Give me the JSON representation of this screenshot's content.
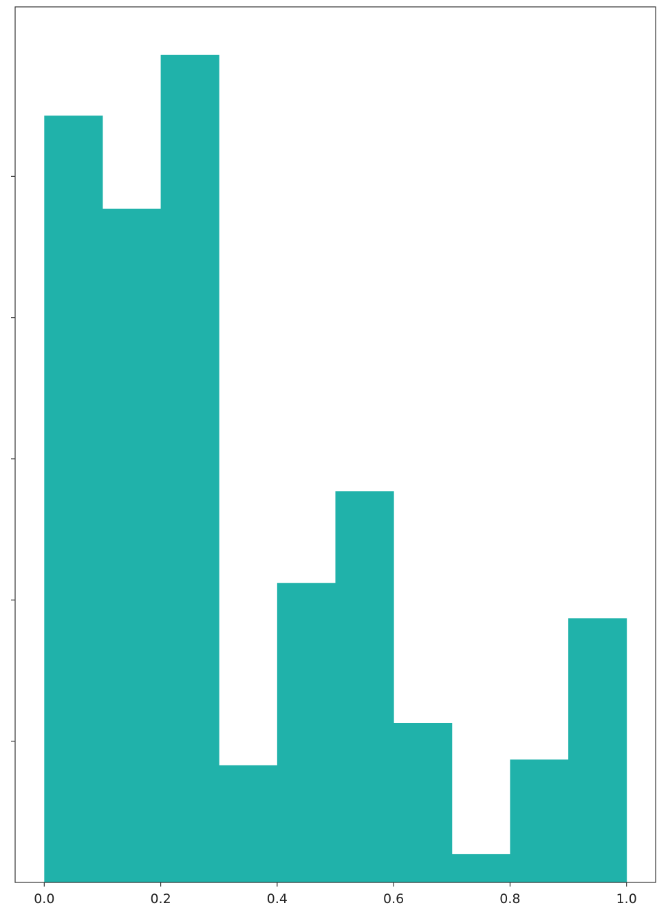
{
  "chart_data": {
    "type": "bar",
    "subtype": "histogram",
    "bin_edges": [
      0.0,
      0.1,
      0.2,
      0.3,
      0.4,
      0.5,
      0.6,
      0.7,
      0.8,
      0.9,
      1.0
    ],
    "values": [
      5.43,
      4.77,
      5.86,
      0.83,
      2.12,
      2.77,
      1.13,
      0.2,
      0.87,
      1.87
    ],
    "title": "",
    "xlabel": "",
    "ylabel": "",
    "xlim": [
      -0.05,
      1.05
    ],
    "ylim": [
      0,
      6.2
    ],
    "x_ticks": [
      0.0,
      0.2,
      0.4,
      0.6,
      0.8,
      1.0
    ],
    "x_tick_labels": [
      "0.0",
      "0.2",
      "0.4",
      "0.6",
      "0.8",
      "1.0"
    ],
    "y_ticks": [
      1,
      2,
      3,
      4,
      5
    ],
    "y_tick_labels_visible": false,
    "grid": false,
    "legend": "none",
    "bar_color": "#20b2aa"
  }
}
